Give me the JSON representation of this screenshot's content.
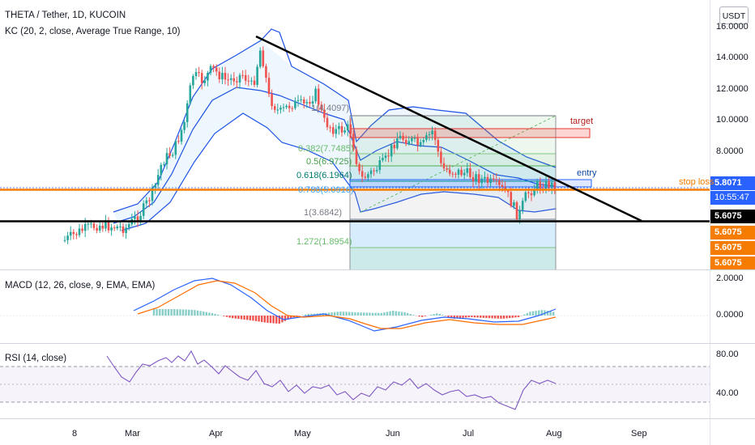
{
  "header": {
    "title": "THETA / Tether, 1D, KUCOIN",
    "kc_indicator": "KC (20, 2, close, Average True Range, 10)"
  },
  "currency_button": "USDT",
  "price_axis": {
    "ticks": [
      "16.0000",
      "14.0000",
      "12.0000",
      "10.0000",
      "8.0000"
    ],
    "last_price": "5.8071",
    "countdown": "10:55:47",
    "levels": [
      "5.6075",
      "5.6075",
      "5.6075",
      "5.6075"
    ],
    "colors": {
      "last": "#2962ff",
      "level_black": "#000000",
      "level_orange": "#f57c00"
    }
  },
  "fib_levels": [
    {
      "label": "1(4.4097)"
    },
    {
      "label": "0.382(7.7485)"
    },
    {
      "label": "0.5(6.9725)"
    },
    {
      "label": "0.618(6.1964)"
    },
    {
      "label": "0.786(5.0916)"
    },
    {
      "label": "1(3.6842)"
    },
    {
      "label": "1.272(1.8954)"
    }
  ],
  "annotations": {
    "target": "target",
    "entry": "entry",
    "stop_loss": "stop loss",
    "colors": {
      "target": "#b71c1c",
      "entry": "#0d47a1",
      "stop_loss": "#f57c00"
    }
  },
  "macd": {
    "legend": "MACD (12, 26, close, 9, EMA, EMA)",
    "ticks": [
      "2.0000",
      "0.0000"
    ]
  },
  "rsi": {
    "legend": "RSI (14, close)",
    "ticks": [
      "80.00",
      "40.00"
    ]
  },
  "time_axis": {
    "labels": [
      "8",
      "Mar",
      "Apr",
      "May",
      "Jun",
      "Jul",
      "Aug",
      "Sep"
    ]
  }
}
